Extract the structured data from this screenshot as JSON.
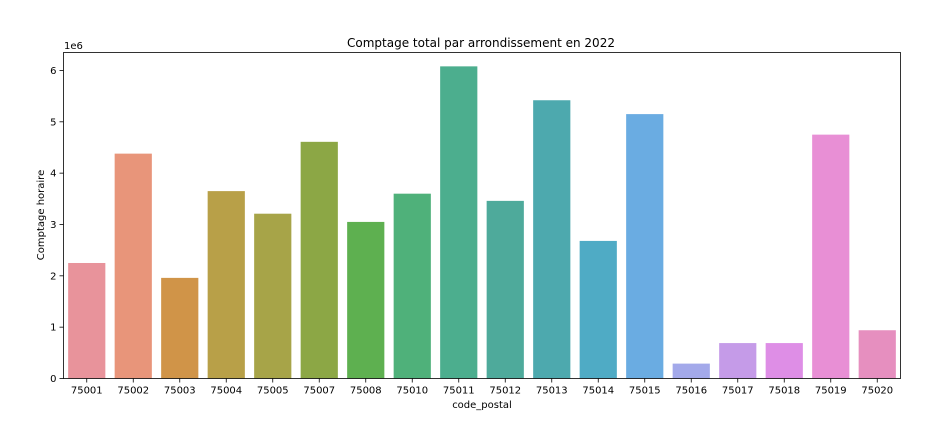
{
  "chart_data": {
    "type": "bar",
    "title": "Comptage total par arrondissement en 2022",
    "xlabel": "code_postal",
    "ylabel": "Comptage horaire",
    "offset_label": "1e6",
    "ylim": [
      0,
      6.35
    ],
    "yticks": [
      "0",
      "1",
      "2",
      "3",
      "4",
      "5",
      "6"
    ],
    "categories": [
      "75001",
      "75002",
      "75003",
      "75004",
      "75005",
      "75007",
      "75008",
      "75010",
      "75011",
      "75012",
      "75013",
      "75014",
      "75015",
      "75016",
      "75017",
      "75018",
      "75019",
      "75020"
    ],
    "values": [
      2.25,
      4.38,
      1.96,
      3.65,
      3.21,
      4.61,
      3.05,
      3.6,
      6.08,
      3.46,
      5.42,
      2.68,
      5.15,
      0.29,
      0.69,
      0.69,
      4.75,
      0.94
    ],
    "colors": [
      "#e8939b",
      "#e8957a",
      "#d09448",
      "#b8a048",
      "#a7a448",
      "#8ca745",
      "#5eb050",
      "#4fb17a",
      "#4cae8e",
      "#4eaa9b",
      "#4da9ae",
      "#4fabc5",
      "#6aace2",
      "#a3a9ea",
      "#c59be8",
      "#de8ee6",
      "#e88fd5",
      "#e68fbf"
    ],
    "grid": false,
    "legend": "none"
  }
}
